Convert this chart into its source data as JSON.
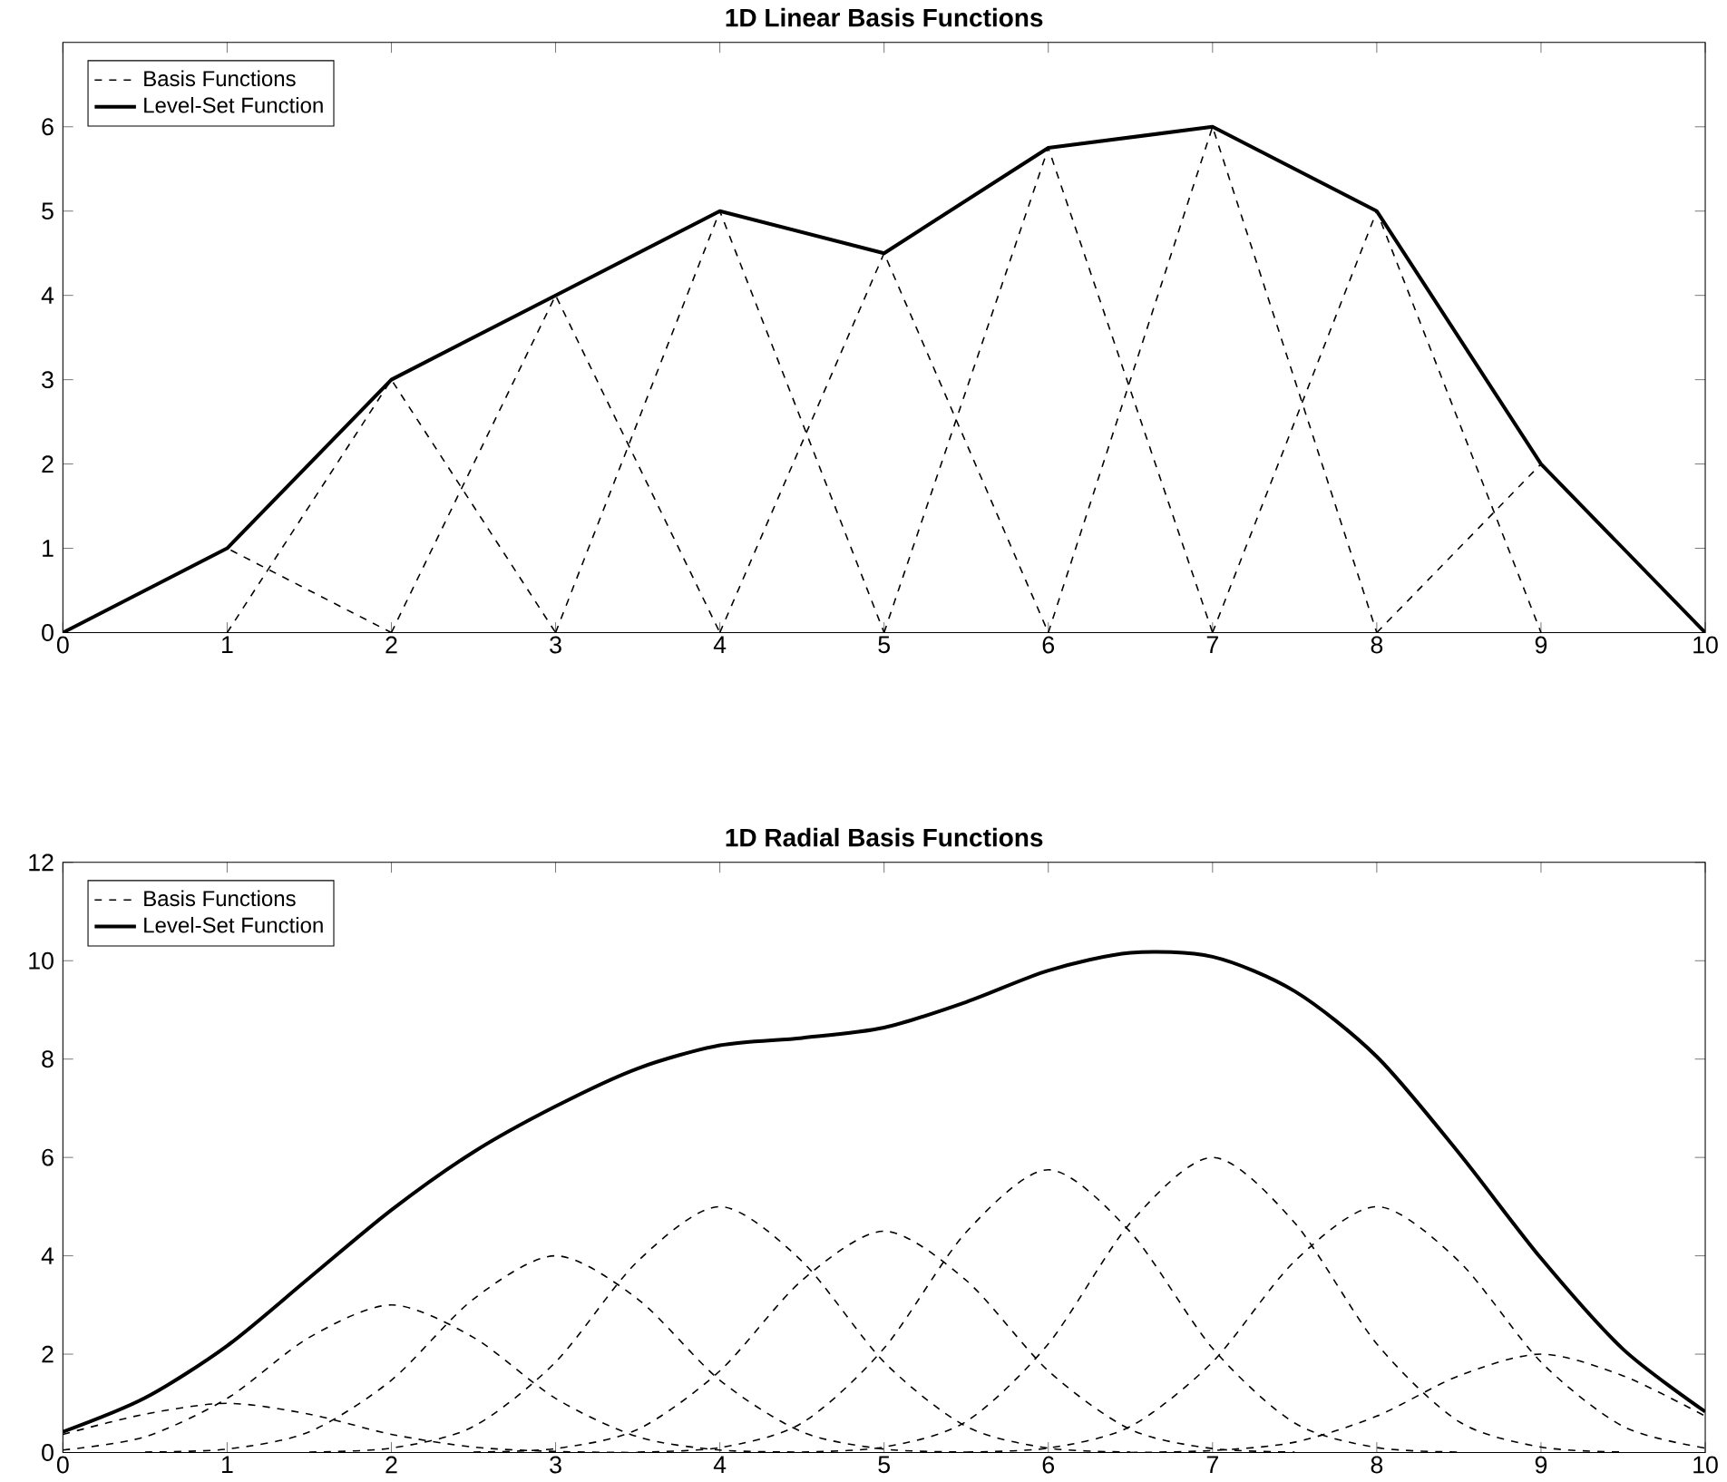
{
  "chart_data": [
    {
      "type": "line",
      "title": "1D Linear Basis Functions",
      "xlim": [
        0,
        10
      ],
      "ylim": [
        0,
        7
      ],
      "xticks": [
        0,
        1,
        2,
        3,
        4,
        5,
        6,
        7,
        8,
        9,
        10
      ],
      "yticks": [
        0,
        1,
        2,
        3,
        4,
        5,
        6
      ],
      "legend": "top left",
      "series": [
        {
          "name": "Basis Functions",
          "color": "#000000",
          "line_style": "dashed",
          "x": [
            0,
            1,
            2
          ],
          "values": [
            0,
            1,
            0
          ]
        },
        {
          "color": "#000000",
          "line_style": "dashed",
          "x": [
            1,
            2,
            3
          ],
          "values": [
            0,
            3,
            0
          ]
        },
        {
          "color": "#000000",
          "line_style": "dashed",
          "x": [
            2,
            3,
            4
          ],
          "values": [
            0,
            4,
            0
          ]
        },
        {
          "color": "#000000",
          "line_style": "dashed",
          "x": [
            3,
            4,
            5
          ],
          "values": [
            0,
            5,
            0
          ]
        },
        {
          "color": "#000000",
          "line_style": "dashed",
          "x": [
            4,
            5,
            6
          ],
          "values": [
            0,
            4.5,
            0
          ]
        },
        {
          "color": "#000000",
          "line_style": "dashed",
          "x": [
            5,
            6,
            7
          ],
          "values": [
            0,
            5.75,
            0
          ]
        },
        {
          "color": "#000000",
          "line_style": "dashed",
          "x": [
            6,
            7,
            8
          ],
          "values": [
            0,
            6,
            0
          ]
        },
        {
          "color": "#000000",
          "line_style": "dashed",
          "x": [
            7,
            8,
            9
          ],
          "values": [
            0,
            5,
            0
          ]
        },
        {
          "color": "#000000",
          "line_style": "dashed",
          "x": [
            8,
            9,
            10
          ],
          "values": [
            0,
            2,
            0
          ]
        },
        {
          "name": "Level-Set Function",
          "color": "#000000",
          "line_style": "solid",
          "x": [
            0,
            1,
            2,
            3,
            4,
            5,
            6,
            7,
            8,
            9,
            10
          ],
          "values": [
            0,
            1,
            3,
            4,
            5,
            4.5,
            5.75,
            6,
            5,
            2,
            0
          ]
        }
      ]
    },
    {
      "type": "line",
      "title": "1D Radial Basis Functions",
      "xlim": [
        0,
        10
      ],
      "ylim": [
        0,
        12
      ],
      "xticks": [
        0,
        1,
        2,
        3,
        4,
        5,
        6,
        7,
        8,
        9,
        10
      ],
      "yticks": [
        0,
        2,
        4,
        6,
        8,
        10,
        12
      ],
      "legend": "top left",
      "series": [
        {
          "name": "Basis Functions",
          "color": "#000000",
          "line_style": "dashed",
          "x": [
            0,
            0.5,
            1,
            1.5,
            2,
            2.5,
            3,
            3.5
          ],
          "values": [
            0.37,
            0.78,
            1,
            0.78,
            0.37,
            0.11,
            0.02,
            0.0
          ]
        },
        {
          "color": "#000000",
          "line_style": "dashed",
          "x": [
            0,
            0.5,
            1,
            1.5,
            2,
            2.5,
            3,
            3.5,
            4,
            4.5
          ],
          "values": [
            0.05,
            0.32,
            1.1,
            2.34,
            3,
            2.34,
            1.1,
            0.32,
            0.05,
            0.01
          ]
        },
        {
          "color": "#000000",
          "line_style": "dashed",
          "x": [
            0.5,
            1,
            1.5,
            2,
            2.5,
            3,
            3.5,
            4,
            4.5,
            5,
            5.5
          ],
          "values": [
            0.01,
            0.07,
            0.42,
            1.47,
            3.12,
            4,
            3.12,
            1.47,
            0.42,
            0.07,
            0.01
          ]
        },
        {
          "color": "#000000",
          "line_style": "dashed",
          "x": [
            1.5,
            2,
            2.5,
            3,
            3.5,
            4,
            4.5,
            5,
            5.5,
            6,
            6.5
          ],
          "values": [
            0.01,
            0.09,
            0.53,
            1.84,
            3.89,
            5,
            3.89,
            1.84,
            0.53,
            0.09,
            0.01
          ]
        },
        {
          "color": "#000000",
          "line_style": "dashed",
          "x": [
            2.5,
            3,
            3.5,
            4,
            4.5,
            5,
            5.5,
            6,
            6.5,
            7,
            7.5
          ],
          "values": [
            0.01,
            0.08,
            0.47,
            1.66,
            3.5,
            4.5,
            3.5,
            1.66,
            0.47,
            0.08,
            0.01
          ]
        },
        {
          "color": "#000000",
          "line_style": "dashed",
          "x": [
            3.5,
            4,
            4.5,
            5,
            5.5,
            6,
            6.5,
            7,
            7.5,
            8,
            8.5
          ],
          "values": [
            0.01,
            0.1,
            0.6,
            2.12,
            4.48,
            5.75,
            4.48,
            2.12,
            0.6,
            0.1,
            0.01
          ]
        },
        {
          "color": "#000000",
          "line_style": "dashed",
          "x": [
            4.5,
            5,
            5.5,
            6,
            6.5,
            7,
            7.5,
            8,
            8.5,
            9,
            9.5
          ],
          "values": [
            0.01,
            0.11,
            0.63,
            2.21,
            4.67,
            6,
            4.67,
            2.21,
            0.63,
            0.11,
            0.01
          ]
        },
        {
          "color": "#000000",
          "line_style": "dashed",
          "x": [
            5.5,
            6,
            6.5,
            7,
            7.5,
            8,
            8.5,
            9,
            9.5,
            10
          ],
          "values": [
            0.01,
            0.09,
            0.53,
            1.84,
            3.89,
            5,
            3.89,
            1.84,
            0.53,
            0.09
          ]
        },
        {
          "color": "#000000",
          "line_style": "dashed",
          "x": [
            6.5,
            7,
            7.5,
            8,
            8.5,
            9,
            9.5,
            10
          ],
          "values": [
            0.0,
            0.04,
            0.21,
            0.74,
            1.56,
            2,
            1.56,
            0.74
          ]
        },
        {
          "name": "Level-Set Function",
          "color": "#000000",
          "line_style": "solid",
          "x": [
            0,
            0.5,
            1,
            1.5,
            2,
            2.5,
            3,
            3.5,
            4,
            4.5,
            5,
            5.5,
            6,
            6.5,
            7,
            7.5,
            8,
            8.5,
            9,
            9.5,
            10
          ],
          "values": [
            0.42,
            1.11,
            2.17,
            3.55,
            4.93,
            6.11,
            7.04,
            7.81,
            8.28,
            8.43,
            8.64,
            9.16,
            9.8,
            10.16,
            10.08,
            9.38,
            8.05,
            6.09,
            3.95,
            2.1,
            0.83
          ]
        }
      ]
    }
  ]
}
